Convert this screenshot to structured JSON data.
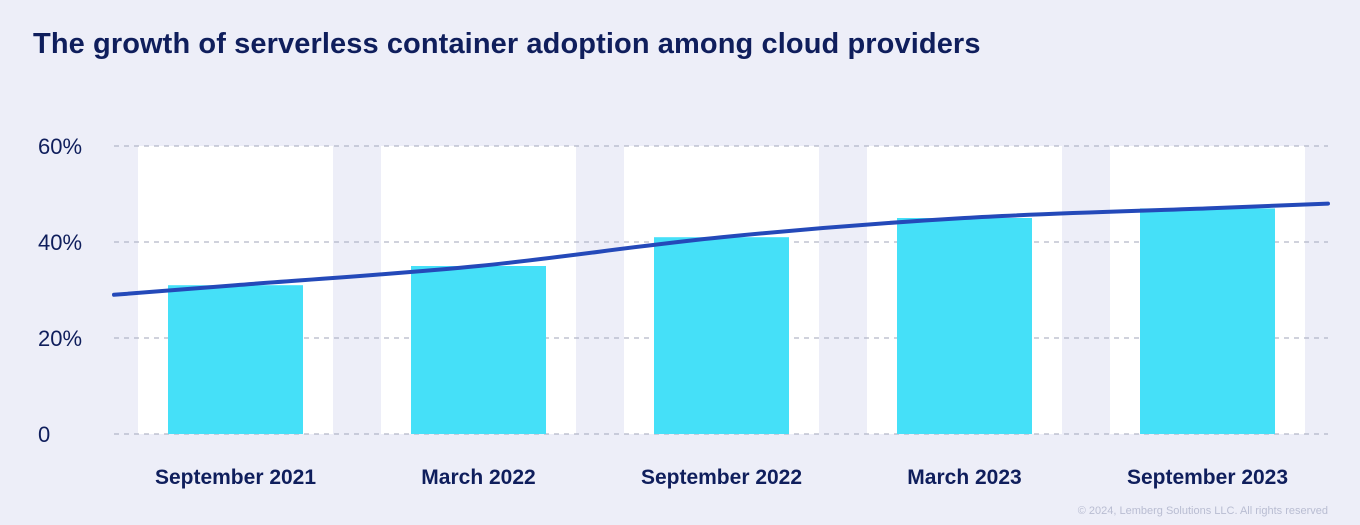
{
  "chart_data": {
    "type": "bar",
    "title": "The growth of serverless container adoption among cloud providers",
    "categories": [
      "September 2021",
      "March 2022",
      "September 2022",
      "March 2023",
      "September 2023"
    ],
    "values": [
      31,
      35,
      41,
      45,
      47
    ],
    "trend_line": {
      "x": [
        "start",
        "September 2021",
        "March 2022",
        "September 2022",
        "March 2023",
        "September 2023",
        "end"
      ],
      "y": [
        29,
        31,
        35,
        41,
        45,
        47,
        48
      ]
    },
    "ylim": [
      0,
      60
    ],
    "yticks": [
      0,
      20,
      40,
      60
    ],
    "ytick_labels": [
      "0",
      "20%",
      "40%",
      "60%"
    ],
    "xlabel": "",
    "ylabel": "",
    "grid": true,
    "colors": {
      "bar": "#45e0f8",
      "column_background": "#ffffff",
      "trend_line": "#2449b9",
      "grid": "#b3b6c8",
      "text": "#0f1e5c",
      "background": "#edeef8"
    }
  },
  "footer": {
    "copyright": "© 2024, Lemberg Solutions LLC. All rights reserved"
  }
}
